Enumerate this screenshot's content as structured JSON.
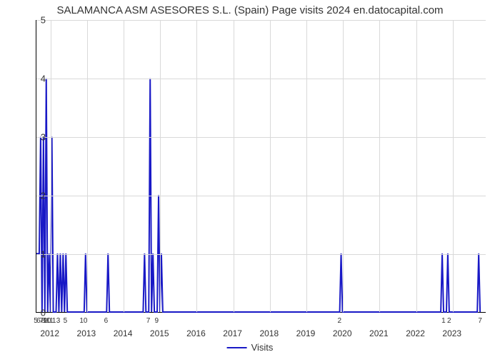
{
  "chart": {
    "type": "line",
    "title": "SALAMANCA ASM ASESORES S.L. (Spain) Page visits 2024 en.datocapital.com",
    "title_fontsize": 15,
    "title_color": "#333333",
    "background_color": "#ffffff",
    "line_color": "#1919c6",
    "line_width": 2,
    "grid_color": "#d9d9d9",
    "axis_color": "#000000",
    "y": {
      "min": 0,
      "max": 5,
      "ticks": [
        0,
        1,
        2,
        3,
        4,
        5
      ],
      "label_fontsize": 13
    },
    "x": {
      "min": 0,
      "max": 160,
      "year_ticks": [
        {
          "pos": 5,
          "label": "2012"
        },
        {
          "pos": 18,
          "label": "2013"
        },
        {
          "pos": 31,
          "label": "2014"
        },
        {
          "pos": 44,
          "label": "2015"
        },
        {
          "pos": 57,
          "label": "2016"
        },
        {
          "pos": 70,
          "label": "2017"
        },
        {
          "pos": 83,
          "label": "2018"
        },
        {
          "pos": 96,
          "label": "2019"
        },
        {
          "pos": 109,
          "label": "2020"
        },
        {
          "pos": 122,
          "label": "2021"
        },
        {
          "pos": 135,
          "label": "2022"
        },
        {
          "pos": 148,
          "label": "2023"
        }
      ],
      "num_ticks": [
        {
          "pos": 0,
          "label": "5"
        },
        {
          "pos": 1,
          "label": "6"
        },
        {
          "pos": 2,
          "label": "7"
        },
        {
          "pos": 2.7,
          "label": "8"
        },
        {
          "pos": 3.4,
          "label": "9"
        },
        {
          "pos": 4,
          "label": "10"
        },
        {
          "pos": 5,
          "label": "11"
        },
        {
          "pos": 6.5,
          "label": "1"
        },
        {
          "pos": 8,
          "label": "3"
        },
        {
          "pos": 10.5,
          "label": "5"
        },
        {
          "pos": 17,
          "label": "10"
        },
        {
          "pos": 25,
          "label": "6"
        },
        {
          "pos": 40,
          "label": "7"
        },
        {
          "pos": 43,
          "label": "9"
        },
        {
          "pos": 108,
          "label": "2"
        },
        {
          "pos": 145,
          "label": "1"
        },
        {
          "pos": 147,
          "label": "2"
        },
        {
          "pos": 158,
          "label": "7"
        }
      ],
      "label_fontsize": 12
    },
    "series": {
      "name": "Visits",
      "points": [
        [
          0,
          1
        ],
        [
          1,
          1
        ],
        [
          1.5,
          3
        ],
        [
          2,
          0
        ],
        [
          2.5,
          3
        ],
        [
          3,
          0
        ],
        [
          3.5,
          4
        ],
        [
          4,
          0
        ],
        [
          4.5,
          1
        ],
        [
          5,
          0
        ],
        [
          5.5,
          3
        ],
        [
          6,
          0
        ],
        [
          7,
          0
        ],
        [
          7.5,
          1
        ],
        [
          8,
          0
        ],
        [
          8.5,
          1
        ],
        [
          9,
          0
        ],
        [
          9.5,
          1
        ],
        [
          10,
          0
        ],
        [
          10.5,
          1
        ],
        [
          11,
          0
        ],
        [
          17,
          0
        ],
        [
          17.5,
          1
        ],
        [
          18,
          0
        ],
        [
          25,
          0
        ],
        [
          25.5,
          1
        ],
        [
          26,
          0
        ],
        [
          38,
          0
        ],
        [
          38.5,
          1
        ],
        [
          39,
          0
        ],
        [
          40,
          0
        ],
        [
          40.5,
          4
        ],
        [
          41,
          0
        ],
        [
          41.5,
          1
        ],
        [
          42,
          0
        ],
        [
          43,
          0
        ],
        [
          43.5,
          2
        ],
        [
          44,
          0
        ],
        [
          44.5,
          1
        ],
        [
          45,
          0
        ],
        [
          108,
          0
        ],
        [
          108.5,
          1
        ],
        [
          109,
          0
        ],
        [
          144,
          0
        ],
        [
          144.5,
          1
        ],
        [
          145,
          0
        ],
        [
          146,
          0
        ],
        [
          146.5,
          1
        ],
        [
          147,
          0
        ],
        [
          157,
          0
        ],
        [
          157.5,
          1
        ],
        [
          158,
          0
        ]
      ]
    },
    "legend": {
      "label": "Visits"
    }
  }
}
